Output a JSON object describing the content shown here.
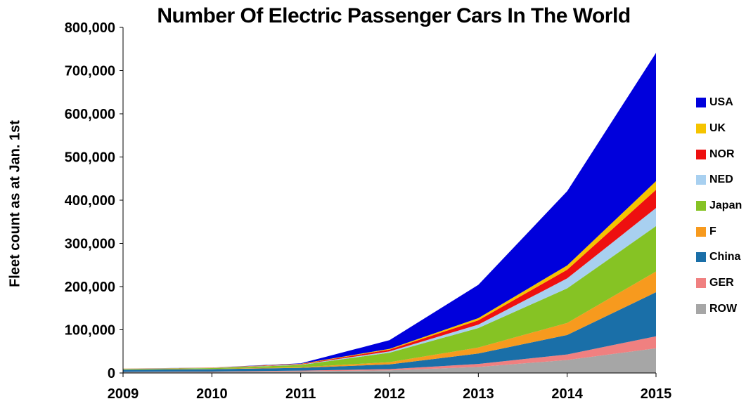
{
  "chart_data": {
    "type": "area",
    "stacked": true,
    "title": "Number Of Electric Passenger Cars In The World",
    "xlabel": "",
    "ylabel": "Fleet count as at Jan. 1st",
    "x": [
      2009,
      2010,
      2011,
      2012,
      2013,
      2014,
      2015
    ],
    "ylim": [
      0,
      800000
    ],
    "yticks": [
      "0",
      "100,000",
      "200,000",
      "300,000",
      "400,000",
      "500,000",
      "600,000",
      "700,000",
      "800,000"
    ],
    "grid": false,
    "legend_position": "right",
    "series": [
      {
        "name": "ROW",
        "color": "#a6a6a6",
        "values": [
          2000,
          2500,
          4000,
          6000,
          14000,
          30000,
          57000
        ]
      },
      {
        "name": "GER",
        "color": "#f08080",
        "values": [
          500,
          700,
          1500,
          3000,
          7000,
          13000,
          28000
        ]
      },
      {
        "name": "China",
        "color": "#1a6fa8",
        "values": [
          5000,
          5500,
          6500,
          11000,
          24000,
          45000,
          102000
        ]
      },
      {
        "name": "F",
        "color": "#f79a1e",
        "values": [
          500,
          700,
          1500,
          5000,
          14000,
          28000,
          48000
        ]
      },
      {
        "name": "Japan",
        "color": "#86c324",
        "values": [
          1500,
          2000,
          5000,
          22000,
          45000,
          80000,
          105000
        ]
      },
      {
        "name": "NED",
        "color": "#a8d0f0",
        "values": [
          200,
          300,
          1000,
          3000,
          8000,
          23000,
          42000
        ]
      },
      {
        "name": "NOR",
        "color": "#ee1010",
        "values": [
          300,
          500,
          1000,
          4000,
          10000,
          20000,
          42000
        ]
      },
      {
        "name": "UK",
        "color": "#f5c400",
        "values": [
          200,
          300,
          800,
          2000,
          5000,
          10000,
          20000
        ]
      },
      {
        "name": "USA",
        "color": "#0000dc",
        "values": [
          100,
          200,
          1000,
          20000,
          77000,
          172000,
          297000
        ]
      }
    ],
    "legend_order": [
      "USA",
      "UK",
      "NOR",
      "NED",
      "Japan",
      "F",
      "China",
      "GER",
      "ROW"
    ]
  }
}
